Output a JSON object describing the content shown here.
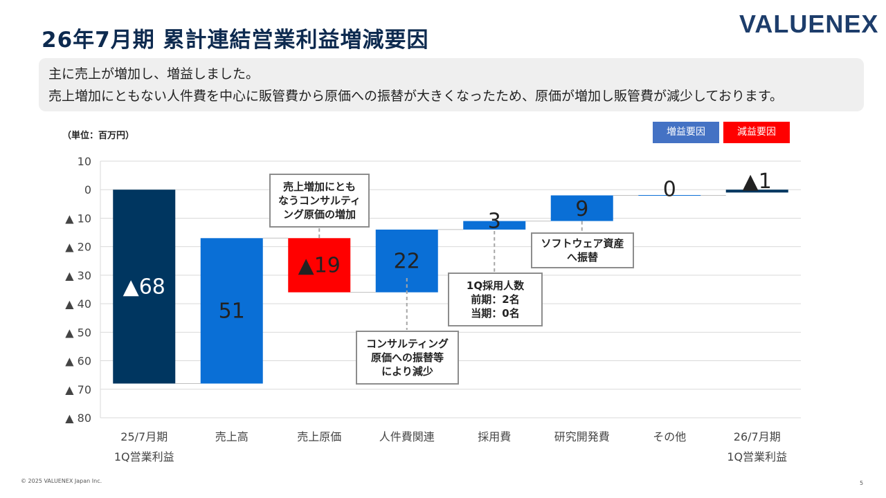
{
  "header": {
    "title": "26年7月期 累計連結営業利益増減要因",
    "logo": "VALUENEX"
  },
  "summary": {
    "line1": "主に売上が増加し、増益しました。",
    "line2": "売上増加にともない人件費を中心に販管費から原価への振替が大きくなったため、原価が増加し販管費が減少しております。"
  },
  "legend": {
    "increase_label": "増益要因",
    "decrease_label": "減益要因",
    "increase_color": "#4472c4",
    "decrease_color": "#ff0000"
  },
  "colors": {
    "total": "#003660",
    "increase": "#0a6fd6",
    "decrease": "#ff0000",
    "grid": "#d9d9d9"
  },
  "chart_data": {
    "type": "waterfall",
    "unit_label": "（単位：百万円）",
    "ylim": [
      -80,
      10
    ],
    "yticks": [
      {
        "value": 10,
        "label": "10"
      },
      {
        "value": 0,
        "label": "0"
      },
      {
        "value": -10,
        "label": "▲ 10"
      },
      {
        "value": -20,
        "label": "▲ 20"
      },
      {
        "value": -30,
        "label": "▲ 30"
      },
      {
        "value": -40,
        "label": "▲ 40"
      },
      {
        "value": -50,
        "label": "▲ 50"
      },
      {
        "value": -60,
        "label": "▲ 60"
      },
      {
        "value": -70,
        "label": "▲ 70"
      },
      {
        "value": -80,
        "label": "▲ 80"
      }
    ],
    "grid": true,
    "bars": [
      {
        "category": [
          "25/7月期",
          "1Q営業利益"
        ],
        "kind": "total",
        "start": 0,
        "end": -68,
        "label": "▲68"
      },
      {
        "category": [
          "売上高"
        ],
        "kind": "increase",
        "start": -68,
        "end": -17,
        "label": "51"
      },
      {
        "category": [
          "売上原価"
        ],
        "kind": "decrease",
        "start": -17,
        "end": -36,
        "label": "▲19"
      },
      {
        "category": [
          "人件費関連"
        ],
        "kind": "increase",
        "start": -36,
        "end": -14,
        "label": "22"
      },
      {
        "category": [
          "採用費"
        ],
        "kind": "increase",
        "start": -14,
        "end": -11,
        "label": "3"
      },
      {
        "category": [
          "研究開発費"
        ],
        "kind": "increase",
        "start": -11,
        "end": -2,
        "label": "9"
      },
      {
        "category": [
          "その他"
        ],
        "kind": "increase",
        "start": -2,
        "end": -2,
        "label": "0"
      },
      {
        "category": [
          "26/7月期",
          "1Q営業利益"
        ],
        "kind": "total",
        "start": 0,
        "end": -1,
        "label": "▲1"
      }
    ],
    "annotations": [
      {
        "text": "売上増加にとも\nなうコンサルティ\nング原価の増加"
      },
      {
        "text": "コンサルティング\n原価への振替等\nにより減少"
      },
      {
        "text": "1Q採用人数\n前期：2名\n当期：0名"
      },
      {
        "text": "ソフトウェア資産\nへ振替"
      }
    ]
  },
  "footer": {
    "copyright": "© 2025 VALUENEX Japan Inc.",
    "page": "5"
  }
}
